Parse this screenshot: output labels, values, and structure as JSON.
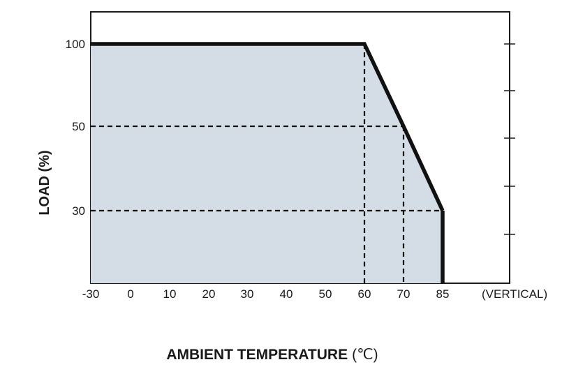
{
  "chart_data": {
    "type": "area",
    "title": "",
    "xlabel": "AMBIENT TEMPERATURE",
    "xlabel_unit": "(℃)",
    "ylabel": "LOAD (%)",
    "x_ticks": [
      "-30",
      "0",
      "10",
      "20",
      "30",
      "40",
      "50",
      "60",
      "70",
      "85"
    ],
    "y_ticks": [
      "30",
      "50",
      "100"
    ],
    "x_annotation": "(VERTICAL)",
    "series": [
      {
        "x": [
          -30,
          60,
          70,
          85,
          85
        ],
        "y": [
          100,
          100,
          50,
          30,
          0
        ]
      }
    ],
    "reference_lines": [
      {
        "x": 60,
        "y": 100
      },
      {
        "x": 70,
        "y": 50
      },
      {
        "x": 85,
        "y": 30
      }
    ],
    "fill_color": "#d4dde5",
    "line_color": "#111111",
    "grid": false
  }
}
